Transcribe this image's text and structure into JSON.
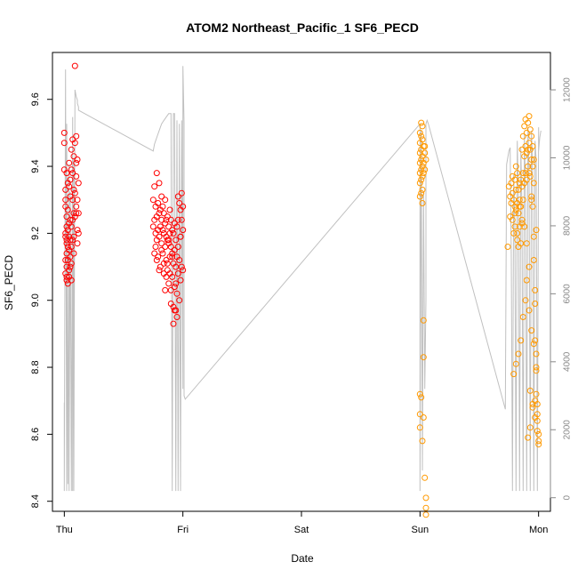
{
  "chart_data": {
    "type": "scatter",
    "title": "ATOM2 Northeast_Pacific_1 SF6_PECD",
    "xlabel": "Date",
    "ylabel": "SF6_PECD",
    "x_unit": "days since Thu 00:00",
    "xlim": [
      -0.1,
      4.1
    ],
    "ylim": [
      8.37,
      9.74
    ],
    "x_ticks": [
      {
        "value": 0,
        "label": "Thu"
      },
      {
        "value": 1,
        "label": "Fri"
      },
      {
        "value": 2,
        "label": "Sat"
      },
      {
        "value": 3,
        "label": "Sun"
      },
      {
        "value": 4,
        "label": "Mon"
      }
    ],
    "y_ticks": [
      8.4,
      8.6,
      8.8,
      9.0,
      9.2,
      9.4,
      9.6
    ],
    "y2_ticks": [
      0,
      2000,
      4000,
      6000,
      8000,
      10000,
      12000
    ],
    "y2lim": [
      -400,
      13100
    ],
    "colors": {
      "series1": "#ff0000",
      "series2": "#ff9900",
      "altitude": "#c0c0c0",
      "axis": "#000000",
      "axis2": "#888888"
    },
    "grid": false,
    "series": [
      {
        "color": "#ff0000",
        "x": [
          0.0,
          0.0,
          0.0,
          0.01,
          0.01,
          0.01,
          0.01,
          0.01,
          0.01,
          0.01,
          0.02,
          0.02,
          0.02,
          0.02,
          0.02,
          0.02,
          0.02,
          0.02,
          0.02,
          0.03,
          0.03,
          0.03,
          0.03,
          0.03,
          0.03,
          0.04,
          0.04,
          0.04,
          0.04,
          0.04,
          0.04,
          0.04,
          0.05,
          0.05,
          0.05,
          0.05,
          0.05,
          0.05,
          0.06,
          0.06,
          0.06,
          0.06,
          0.06,
          0.06,
          0.07,
          0.07,
          0.07,
          0.07,
          0.07,
          0.08,
          0.08,
          0.08,
          0.08,
          0.08,
          0.09,
          0.09,
          0.09,
          0.09,
          0.1,
          0.1,
          0.1,
          0.1,
          0.1,
          0.11,
          0.11,
          0.11,
          0.11,
          0.12,
          0.12,
          0.12,
          0.75,
          0.75,
          0.76,
          0.76,
          0.77,
          0.77,
          0.77,
          0.78,
          0.78,
          0.78,
          0.79,
          0.79,
          0.79,
          0.8,
          0.8,
          0.8,
          0.81,
          0.81,
          0.81,
          0.82,
          0.82,
          0.82,
          0.83,
          0.83,
          0.83,
          0.84,
          0.84,
          0.84,
          0.85,
          0.85,
          0.85,
          0.86,
          0.86,
          0.86,
          0.87,
          0.87,
          0.87,
          0.88,
          0.88,
          0.88,
          0.89,
          0.89,
          0.89,
          0.9,
          0.9,
          0.9,
          0.91,
          0.91,
          0.91,
          0.92,
          0.92,
          0.92,
          0.93,
          0.93,
          0.93,
          0.94,
          0.94,
          0.94,
          0.95,
          0.95,
          0.95,
          0.96,
          0.96,
          0.96,
          0.97,
          0.97,
          0.97,
          0.98,
          0.98,
          0.98,
          0.99,
          0.99,
          0.99,
          1.0,
          1.0,
          1.0,
          0.76,
          0.78,
          0.8,
          0.82,
          0.84,
          0.86,
          0.88,
          0.9,
          0.92,
          0.94,
          0.96,
          0.98,
          0.95,
          0.93,
          0.91,
          0.89,
          0.87,
          0.85
        ],
        "y": [
          9.5,
          9.47,
          9.39,
          9.33,
          9.3,
          9.28,
          9.2,
          9.19,
          9.12,
          9.08,
          9.38,
          9.22,
          9.17,
          9.14,
          9.1,
          9.06,
          9.25,
          9.18,
          9.07,
          9.35,
          9.27,
          9.21,
          9.16,
          9.12,
          9.05,
          9.41,
          9.34,
          9.23,
          9.19,
          9.15,
          9.09,
          9.07,
          9.36,
          9.31,
          9.24,
          9.18,
          9.13,
          9.1,
          9.45,
          9.39,
          9.22,
          9.16,
          9.11,
          9.06,
          9.48,
          9.38,
          9.3,
          9.24,
          9.18,
          9.43,
          9.33,
          9.26,
          9.19,
          9.14,
          9.7,
          9.47,
          9.32,
          9.25,
          9.49,
          9.41,
          9.37,
          9.28,
          9.26,
          9.42,
          9.3,
          9.21,
          9.17,
          9.35,
          9.26,
          9.2,
          9.3,
          9.22,
          9.34,
          9.24,
          9.28,
          9.2,
          9.16,
          9.38,
          9.25,
          9.18,
          9.29,
          9.21,
          9.13,
          9.35,
          9.26,
          9.19,
          9.27,
          9.22,
          9.1,
          9.31,
          9.24,
          9.17,
          9.28,
          9.21,
          9.14,
          9.26,
          9.2,
          9.08,
          9.3,
          9.23,
          9.16,
          9.24,
          9.19,
          9.12,
          9.25,
          9.18,
          9.09,
          9.22,
          9.17,
          9.05,
          9.27,
          9.2,
          9.13,
          9.24,
          9.16,
          9.03,
          9.21,
          9.14,
          9.07,
          9.2,
          9.11,
          8.98,
          9.23,
          9.15,
          9.04,
          9.18,
          9.1,
          8.97,
          9.22,
          9.13,
          9.02,
          9.31,
          9.16,
          9.08,
          9.29,
          9.12,
          9.0,
          9.27,
          9.19,
          9.06,
          9.32,
          9.24,
          9.1,
          9.28,
          9.21,
          9.09,
          9.14,
          9.12,
          9.09,
          9.15,
          9.11,
          9.07,
          9.18,
          8.99,
          8.93,
          9.05,
          9.24,
          9.19,
          8.95,
          8.97,
          9.13,
          9.08,
          9.11,
          9.03
        ]
      },
      {
        "color": "#ff9900",
        "x": [
          3.0,
          3.0,
          3.0,
          3.0,
          3.0,
          3.0,
          3.0,
          3.0,
          3.0,
          3.0,
          3.01,
          3.01,
          3.01,
          3.01,
          3.01,
          3.01,
          3.01,
          3.01,
          3.02,
          3.02,
          3.02,
          3.02,
          3.02,
          3.02,
          3.02,
          3.02,
          3.03,
          3.03,
          3.03,
          3.03,
          3.03,
          3.03,
          3.04,
          3.04,
          3.04,
          3.04,
          3.05,
          3.05,
          3.05,
          3.05,
          3.74,
          3.75,
          3.76,
          3.76,
          3.77,
          3.77,
          3.78,
          3.78,
          3.79,
          3.79,
          3.8,
          3.8,
          3.8,
          3.81,
          3.81,
          3.81,
          3.82,
          3.82,
          3.82,
          3.83,
          3.83,
          3.83,
          3.84,
          3.84,
          3.84,
          3.85,
          3.85,
          3.85,
          3.86,
          3.86,
          3.86,
          3.87,
          3.87,
          3.87,
          3.88,
          3.88,
          3.88,
          3.89,
          3.89,
          3.89,
          3.9,
          3.9,
          3.9,
          3.91,
          3.91,
          3.91,
          3.92,
          3.92,
          3.92,
          3.93,
          3.93,
          3.93,
          3.94,
          3.94,
          3.94,
          3.95,
          3.95,
          3.95,
          3.96,
          3.96,
          3.96,
          3.97,
          3.97,
          3.97,
          3.98,
          3.98,
          3.98,
          3.99,
          3.99,
          3.99,
          4.0,
          4.0,
          4.0,
          3.78,
          3.8,
          3.82,
          3.84,
          3.86,
          3.88,
          3.9,
          3.92,
          3.94,
          3.96,
          3.98,
          3.97,
          3.95,
          3.93,
          3.91,
          3.89,
          3.87,
          3.85,
          3.83,
          3.81,
          3.79,
          3.93,
          3.95,
          3.97,
          3.99,
          3.98,
          3.96,
          3.94,
          3.92,
          3.9
        ],
        "y": [
          9.5,
          9.47,
          9.44,
          9.41,
          9.38,
          9.35,
          9.31,
          8.72,
          8.66,
          8.62,
          9.53,
          9.49,
          9.45,
          9.42,
          9.39,
          9.36,
          9.32,
          8.71,
          9.52,
          9.48,
          9.43,
          9.4,
          9.37,
          9.33,
          9.29,
          8.58,
          9.46,
          9.41,
          9.38,
          8.94,
          8.83,
          8.65,
          9.46,
          9.44,
          9.39,
          8.47,
          9.42,
          8.41,
          8.38,
          8.36,
          9.16,
          9.34,
          9.31,
          9.25,
          9.35,
          9.29,
          9.37,
          9.32,
          9.3,
          9.2,
          9.36,
          9.28,
          9.22,
          9.4,
          9.33,
          9.27,
          9.38,
          9.29,
          9.18,
          9.33,
          9.26,
          9.16,
          9.35,
          9.3,
          9.22,
          9.36,
          9.28,
          9.17,
          9.45,
          9.34,
          9.24,
          9.49,
          9.38,
          9.3,
          9.52,
          9.43,
          9.35,
          9.54,
          9.46,
          9.38,
          9.5,
          9.44,
          9.36,
          9.53,
          9.45,
          9.4,
          9.55,
          9.47,
          9.38,
          9.51,
          9.45,
          9.37,
          9.49,
          9.42,
          9.3,
          9.46,
          9.4,
          9.28,
          9.42,
          9.35,
          9.12,
          9.03,
          8.99,
          8.88,
          8.84,
          8.8,
          8.72,
          8.69,
          8.66,
          8.64,
          8.6,
          8.58,
          8.57,
          9.24,
          9.26,
          9.2,
          9.28,
          9.23,
          9.22,
          9.17,
          8.97,
          8.91,
          8.87,
          8.79,
          8.7,
          8.68,
          8.62,
          8.59,
          9.0,
          8.95,
          8.88,
          8.84,
          8.81,
          8.78,
          8.73,
          8.69,
          8.65,
          8.61,
          9.21,
          9.19,
          9.31,
          9.1,
          9.06
        ]
      }
    ],
    "altitude_line": {
      "x": [
        0.0,
        0.0,
        0.01,
        0.02,
        0.02,
        0.03,
        0.04,
        0.04,
        0.05,
        0.06,
        0.07,
        0.07,
        0.08,
        0.08,
        0.09,
        0.1,
        0.11,
        0.11,
        0.12,
        0.12,
        0.75,
        0.76,
        0.78,
        0.8,
        0.82,
        0.84,
        0.86,
        0.88,
        0.89,
        0.9,
        0.91,
        0.92,
        0.93,
        0.94,
        0.95,
        0.96,
        0.97,
        0.98,
        0.99,
        1.0,
        1.0,
        1.01,
        1.01,
        1.02,
        3.0,
        3.0,
        3.01,
        3.02,
        3.03,
        3.04,
        3.05,
        3.05,
        3.06,
        3.06,
        3.07,
        3.72,
        3.73,
        3.74,
        3.75,
        3.76,
        3.77,
        3.78,
        3.79,
        3.8,
        3.81,
        3.82,
        3.83,
        3.84,
        3.85,
        3.86,
        3.87,
        3.88,
        3.89,
        3.9,
        3.91,
        3.92,
        3.93,
        3.94,
        3.95,
        3.96,
        3.97,
        3.98,
        3.99,
        4.0,
        4.0,
        4.01,
        4.02
      ],
      "y": [
        2800,
        200,
        12600,
        200,
        11000,
        400,
        9800,
        200,
        9000,
        200,
        11200,
        200,
        10000,
        200,
        12000,
        11800,
        11700,
        11600,
        11500,
        11400,
        10200,
        10400,
        10600,
        10800,
        11000,
        11100,
        11200,
        11300,
        11300,
        11300,
        200,
        11300,
        11300,
        200,
        11100,
        200,
        11000,
        200,
        11100,
        3200,
        12700,
        11000,
        3000,
        2900,
        11000,
        200,
        10800,
        800,
        9000,
        3200,
        5800,
        11000,
        11100,
        11100,
        11000,
        2600,
        9800,
        10000,
        10200,
        10300,
        7000,
        200,
        9500,
        8000,
        200,
        10500,
        9000,
        200,
        10300,
        8500,
        200,
        10700,
        9000,
        200,
        10900,
        9500,
        200,
        10800,
        9600,
        200,
        10500,
        9900,
        200,
        10900,
        10200,
        10600,
        10800
      ]
    }
  }
}
